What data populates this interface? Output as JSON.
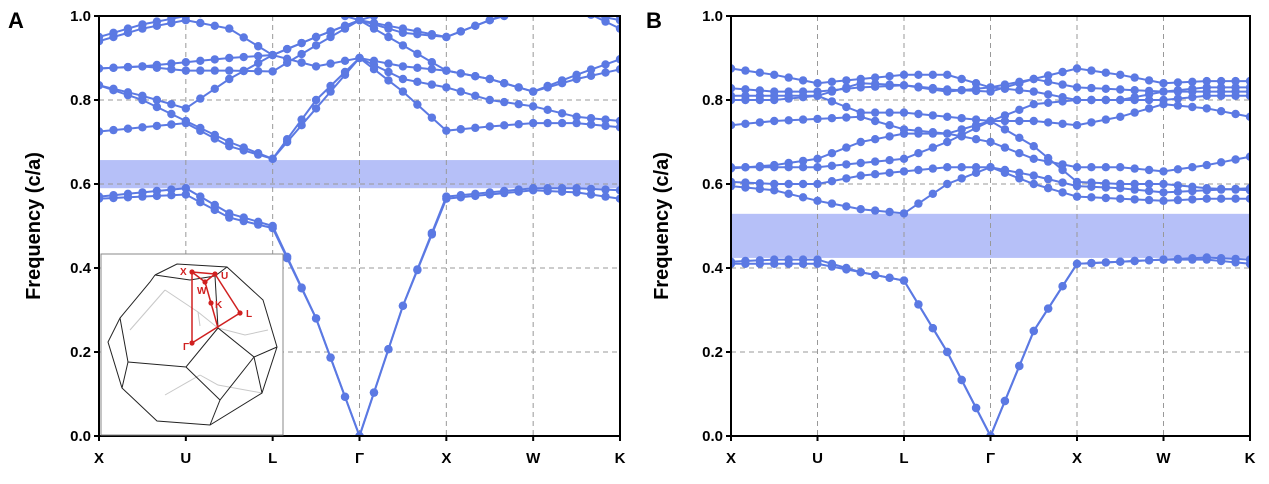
{
  "chart_data": [
    {
      "type": "line",
      "panel_label": "A",
      "ylabel": "Frequency (c/a)",
      "xlabel": "",
      "ylim": [
        0,
        1.0
      ],
      "yticks": [
        "0.0",
        "0.2",
        "0.4",
        "0.6",
        "0.8",
        "1.0"
      ],
      "xticks": [
        "X",
        "U",
        "L",
        "Γ",
        "X",
        "W",
        "K"
      ],
      "grid": true,
      "line_color": "#5b79e3",
      "band_gap": {
        "from": 0.59,
        "to": 0.657,
        "color": "#b6c0f8"
      },
      "k_samples": "values at each high-symmetry point and segment midpoints (X, ·, U, ·, L, ·, Γ, ·, X, ·, W, ·, K)",
      "series": [
        {
          "values": [
            0.565,
            0.57,
            0.575,
            0.52,
            0.495,
            0.28,
            0,
            0.31,
            0.565,
            0.575,
            0.585,
            0.58,
            0.565
          ]
        },
        {
          "values": [
            0.57,
            0.58,
            0.59,
            0.53,
            0.5,
            0.28,
            0,
            0.31,
            0.57,
            0.58,
            0.59,
            0.59,
            0.585
          ]
        },
        {
          "values": [
            0.725,
            0.735,
            0.745,
            0.69,
            0.66,
            0.78,
            0.9,
            0.82,
            0.727,
            0.737,
            0.745,
            0.745,
            0.735
          ]
        },
        {
          "values": [
            0.835,
            0.8,
            0.75,
            0.7,
            0.66,
            0.8,
            0.9,
            0.85,
            0.83,
            0.8,
            0.785,
            0.76,
            0.75
          ]
        },
        {
          "values": [
            0.835,
            0.81,
            0.78,
            0.85,
            0.907,
            0.88,
            0.9,
            0.88,
            0.87,
            0.85,
            0.82,
            0.86,
            0.897
          ]
        },
        {
          "values": [
            0.875,
            0.88,
            0.87,
            0.87,
            0.868,
            0.93,
            0.99,
            0.93,
            0.87,
            0.85,
            0.82,
            0.85,
            0.873
          ]
        },
        {
          "values": [
            0.875,
            0.88,
            0.89,
            0.9,
            0.907,
            0.95,
            0.99,
            0.97,
            0.95,
            0.99,
            1.02,
            1.02,
            0.97
          ]
        },
        {
          "values": [
            0.94,
            0.97,
            0.99,
            0.97,
            0.907,
            0.95,
            0.99,
            0.96,
            0.95,
            0.99,
            1.03,
            1.01,
            0.99
          ]
        },
        {
          "values": [
            0.95,
            0.98,
            1.0,
            1.02,
            1.03,
            1.02,
            0.99,
            1.02,
            1.03,
            1.03,
            1.03,
            1.02,
            1.0
          ]
        }
      ],
      "inset": {
        "labels": {
          "X": "X",
          "U": "U",
          "W": "W",
          "K": "K",
          "L": "L",
          "G": "Γ"
        },
        "path_color": "#d02020"
      }
    },
    {
      "type": "line",
      "panel_label": "B",
      "ylabel": "Frequency (c/a)",
      "xlabel": "",
      "ylim": [
        0,
        1.0
      ],
      "yticks": [
        "0.0",
        "0.2",
        "0.4",
        "0.6",
        "0.8",
        "1.0"
      ],
      "xticks": [
        "X",
        "U",
        "L",
        "Γ",
        "X",
        "W",
        "K"
      ],
      "grid": true,
      "line_color": "#5b79e3",
      "band_gap": {
        "from": 0.424,
        "to": 0.529,
        "color": "#b6c0f8"
      },
      "series": [
        {
          "values": [
            0.41,
            0.41,
            0.41,
            0.39,
            0.37,
            0.2,
            0,
            0.25,
            0.41,
            0.415,
            0.42,
            0.42,
            0.41
          ]
        },
        {
          "values": [
            0.415,
            0.42,
            0.42,
            0.39,
            0.37,
            0.2,
            0,
            0.25,
            0.41,
            0.415,
            0.42,
            0.425,
            0.42
          ]
        },
        {
          "values": [
            0.595,
            0.585,
            0.56,
            0.54,
            0.53,
            0.6,
            0.64,
            0.6,
            0.57,
            0.565,
            0.56,
            0.565,
            0.565
          ]
        },
        {
          "values": [
            0.605,
            0.6,
            0.6,
            0.62,
            0.63,
            0.64,
            0.64,
            0.62,
            0.595,
            0.59,
            0.58,
            0.585,
            0.59
          ]
        },
        {
          "values": [
            0.637,
            0.645,
            0.66,
            0.7,
            0.72,
            0.72,
            0.7,
            0.66,
            0.64,
            0.64,
            0.63,
            0.645,
            0.665
          ]
        },
        {
          "values": [
            0.64,
            0.64,
            0.64,
            0.65,
            0.66,
            0.7,
            0.75,
            0.69,
            0.605,
            0.6,
            0.6,
            0.59,
            0.585
          ]
        },
        {
          "values": [
            0.74,
            0.75,
            0.755,
            0.76,
            0.73,
            0.72,
            0.75,
            0.75,
            0.74,
            0.76,
            0.79,
            0.78,
            0.76
          ]
        },
        {
          "values": [
            0.8,
            0.8,
            0.81,
            0.77,
            0.77,
            0.76,
            0.75,
            0.79,
            0.8,
            0.8,
            0.8,
            0.81,
            0.81
          ]
        },
        {
          "values": [
            0.828,
            0.82,
            0.82,
            0.83,
            0.835,
            0.825,
            0.82,
            0.85,
            0.83,
            0.825,
            0.82,
            0.82,
            0.82
          ]
        },
        {
          "values": [
            0.875,
            0.86,
            0.84,
            0.85,
            0.86,
            0.86,
            0.83,
            0.85,
            0.875,
            0.86,
            0.84,
            0.845,
            0.845
          ]
        },
        {
          "values": [
            0.81,
            0.81,
            0.81,
            0.84,
            0.835,
            0.82,
            0.83,
            0.82,
            0.8,
            0.8,
            0.82,
            0.83,
            0.83
          ]
        }
      ]
    }
  ]
}
